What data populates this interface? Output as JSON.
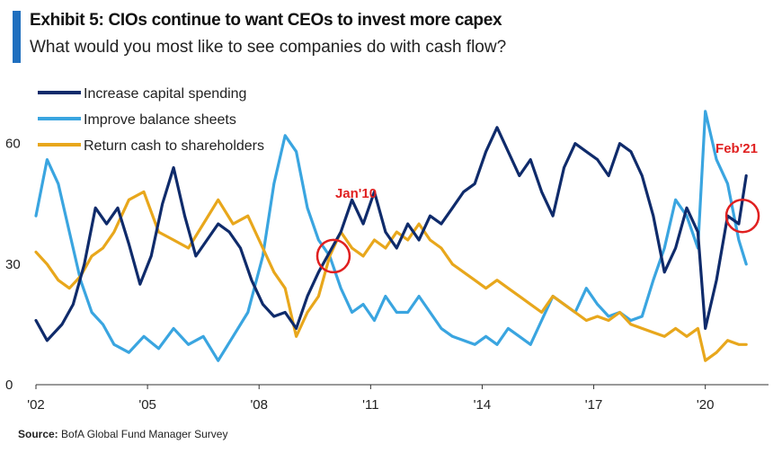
{
  "header": {
    "title": "Exhibit 5: CIOs continue to want CEOs to invest more capex",
    "subtitle": "What would you most like to see companies do with cash flow?"
  },
  "source": {
    "label": "Source:",
    "text": "BofA Global Fund Manager Survey"
  },
  "colors": {
    "accent": "#1f6fbf",
    "annotation": "#e02020"
  },
  "chart_data": {
    "type": "line",
    "title": "",
    "xlabel": "",
    "ylabel": "",
    "ylim": [
      0,
      70
    ],
    "xlim": [
      2002,
      2021.7
    ],
    "yticks": [
      0,
      30,
      60
    ],
    "xticks": [
      {
        "value": 2002,
        "label": "'02"
      },
      {
        "value": 2005,
        "label": "'05"
      },
      {
        "value": 2008,
        "label": "'08"
      },
      {
        "value": 2011,
        "label": "'11"
      },
      {
        "value": 2014,
        "label": "'14"
      },
      {
        "value": 2017,
        "label": "'17"
      },
      {
        "value": 2020,
        "label": "'20"
      }
    ],
    "grid": false,
    "legend_position": "top-left",
    "series": [
      {
        "name": "Increase capital spending",
        "color": "#0f2b6b",
        "points": [
          [
            2002.0,
            16
          ],
          [
            2002.3,
            11
          ],
          [
            2002.7,
            15
          ],
          [
            2003.0,
            20
          ],
          [
            2003.3,
            30
          ],
          [
            2003.6,
            44
          ],
          [
            2003.9,
            40
          ],
          [
            2004.2,
            44
          ],
          [
            2004.5,
            35
          ],
          [
            2004.8,
            25
          ],
          [
            2005.1,
            32
          ],
          [
            2005.4,
            45
          ],
          [
            2005.7,
            54
          ],
          [
            2006.0,
            42
          ],
          [
            2006.3,
            32
          ],
          [
            2006.6,
            36
          ],
          [
            2006.9,
            40
          ],
          [
            2007.2,
            38
          ],
          [
            2007.5,
            34
          ],
          [
            2007.8,
            26
          ],
          [
            2008.1,
            20
          ],
          [
            2008.4,
            17
          ],
          [
            2008.7,
            18
          ],
          [
            2009.0,
            14
          ],
          [
            2009.3,
            22
          ],
          [
            2009.6,
            28
          ],
          [
            2009.9,
            33
          ],
          [
            2010.2,
            38
          ],
          [
            2010.5,
            46
          ],
          [
            2010.8,
            40
          ],
          [
            2011.1,
            48
          ],
          [
            2011.4,
            38
          ],
          [
            2011.7,
            34
          ],
          [
            2012.0,
            40
          ],
          [
            2012.3,
            36
          ],
          [
            2012.6,
            42
          ],
          [
            2012.9,
            40
          ],
          [
            2013.2,
            44
          ],
          [
            2013.5,
            48
          ],
          [
            2013.8,
            50
          ],
          [
            2014.1,
            58
          ],
          [
            2014.4,
            64
          ],
          [
            2014.7,
            58
          ],
          [
            2015.0,
            52
          ],
          [
            2015.3,
            56
          ],
          [
            2015.6,
            48
          ],
          [
            2015.9,
            42
          ],
          [
            2016.2,
            54
          ],
          [
            2016.5,
            60
          ],
          [
            2016.8,
            58
          ],
          [
            2017.1,
            56
          ],
          [
            2017.4,
            52
          ],
          [
            2017.7,
            60
          ],
          [
            2018.0,
            58
          ],
          [
            2018.3,
            52
          ],
          [
            2018.6,
            42
          ],
          [
            2018.9,
            28
          ],
          [
            2019.2,
            34
          ],
          [
            2019.5,
            44
          ],
          [
            2019.8,
            38
          ],
          [
            2020.0,
            14
          ],
          [
            2020.3,
            26
          ],
          [
            2020.6,
            42
          ],
          [
            2020.9,
            40
          ],
          [
            2021.1,
            52
          ]
        ]
      },
      {
        "name": "Improve balance sheets",
        "color": "#3aa5e0",
        "points": [
          [
            2002.0,
            42
          ],
          [
            2002.3,
            56
          ],
          [
            2002.6,
            50
          ],
          [
            2002.9,
            38
          ],
          [
            2003.2,
            26
          ],
          [
            2003.5,
            18
          ],
          [
            2003.8,
            15
          ],
          [
            2004.1,
            10
          ],
          [
            2004.5,
            8
          ],
          [
            2004.9,
            12
          ],
          [
            2005.3,
            9
          ],
          [
            2005.7,
            14
          ],
          [
            2006.1,
            10
          ],
          [
            2006.5,
            12
          ],
          [
            2006.9,
            6
          ],
          [
            2007.3,
            12
          ],
          [
            2007.7,
            18
          ],
          [
            2008.1,
            32
          ],
          [
            2008.4,
            50
          ],
          [
            2008.7,
            62
          ],
          [
            2009.0,
            58
          ],
          [
            2009.3,
            44
          ],
          [
            2009.6,
            36
          ],
          [
            2009.9,
            32
          ],
          [
            2010.2,
            24
          ],
          [
            2010.5,
            18
          ],
          [
            2010.8,
            20
          ],
          [
            2011.1,
            16
          ],
          [
            2011.4,
            22
          ],
          [
            2011.7,
            18
          ],
          [
            2012.0,
            18
          ],
          [
            2012.3,
            22
          ],
          [
            2012.6,
            18
          ],
          [
            2012.9,
            14
          ],
          [
            2013.2,
            12
          ],
          [
            2013.5,
            11
          ],
          [
            2013.8,
            10
          ],
          [
            2014.1,
            12
          ],
          [
            2014.4,
            10
          ],
          [
            2014.7,
            14
          ],
          [
            2015.0,
            12
          ],
          [
            2015.3,
            10
          ],
          [
            2015.6,
            16
          ],
          [
            2015.9,
            22
          ],
          [
            2016.2,
            20
          ],
          [
            2016.5,
            18
          ],
          [
            2016.8,
            24
          ],
          [
            2017.1,
            20
          ],
          [
            2017.4,
            17
          ],
          [
            2017.7,
            18
          ],
          [
            2018.0,
            16
          ],
          [
            2018.3,
            17
          ],
          [
            2018.6,
            26
          ],
          [
            2018.9,
            34
          ],
          [
            2019.2,
            46
          ],
          [
            2019.5,
            42
          ],
          [
            2019.8,
            34
          ],
          [
            2020.0,
            68
          ],
          [
            2020.3,
            56
          ],
          [
            2020.6,
            50
          ],
          [
            2020.9,
            36
          ],
          [
            2021.1,
            30
          ]
        ]
      },
      {
        "name": "Return cash to shareholders",
        "color": "#e8a71c",
        "points": [
          [
            2002.0,
            33
          ],
          [
            2002.3,
            30
          ],
          [
            2002.6,
            26
          ],
          [
            2002.9,
            24
          ],
          [
            2003.2,
            27
          ],
          [
            2003.5,
            32
          ],
          [
            2003.8,
            34
          ],
          [
            2004.1,
            38
          ],
          [
            2004.5,
            46
          ],
          [
            2004.9,
            48
          ],
          [
            2005.3,
            38
          ],
          [
            2005.7,
            36
          ],
          [
            2006.1,
            34
          ],
          [
            2006.5,
            40
          ],
          [
            2006.9,
            46
          ],
          [
            2007.3,
            40
          ],
          [
            2007.7,
            42
          ],
          [
            2008.1,
            34
          ],
          [
            2008.4,
            28
          ],
          [
            2008.7,
            24
          ],
          [
            2009.0,
            12
          ],
          [
            2009.3,
            18
          ],
          [
            2009.6,
            22
          ],
          [
            2009.9,
            32
          ],
          [
            2010.2,
            38
          ],
          [
            2010.5,
            34
          ],
          [
            2010.8,
            32
          ],
          [
            2011.1,
            36
          ],
          [
            2011.4,
            34
          ],
          [
            2011.7,
            38
          ],
          [
            2012.0,
            36
          ],
          [
            2012.3,
            40
          ],
          [
            2012.6,
            36
          ],
          [
            2012.9,
            34
          ],
          [
            2013.2,
            30
          ],
          [
            2013.5,
            28
          ],
          [
            2013.8,
            26
          ],
          [
            2014.1,
            24
          ],
          [
            2014.4,
            26
          ],
          [
            2014.7,
            24
          ],
          [
            2015.0,
            22
          ],
          [
            2015.3,
            20
          ],
          [
            2015.6,
            18
          ],
          [
            2015.9,
            22
          ],
          [
            2016.2,
            20
          ],
          [
            2016.5,
            18
          ],
          [
            2016.8,
            16
          ],
          [
            2017.1,
            17
          ],
          [
            2017.4,
            16
          ],
          [
            2017.7,
            18
          ],
          [
            2018.0,
            15
          ],
          [
            2018.3,
            14
          ],
          [
            2018.6,
            13
          ],
          [
            2018.9,
            12
          ],
          [
            2019.2,
            14
          ],
          [
            2019.5,
            12
          ],
          [
            2019.8,
            14
          ],
          [
            2020.0,
            6
          ],
          [
            2020.3,
            8
          ],
          [
            2020.6,
            11
          ],
          [
            2020.9,
            10
          ],
          [
            2021.1,
            10
          ]
        ]
      }
    ],
    "annotations": [
      {
        "label": "Jan'10",
        "x": 2010.0,
        "y": 32
      },
      {
        "label": "Feb'21",
        "x": 2021.0,
        "y": 42
      }
    ]
  }
}
